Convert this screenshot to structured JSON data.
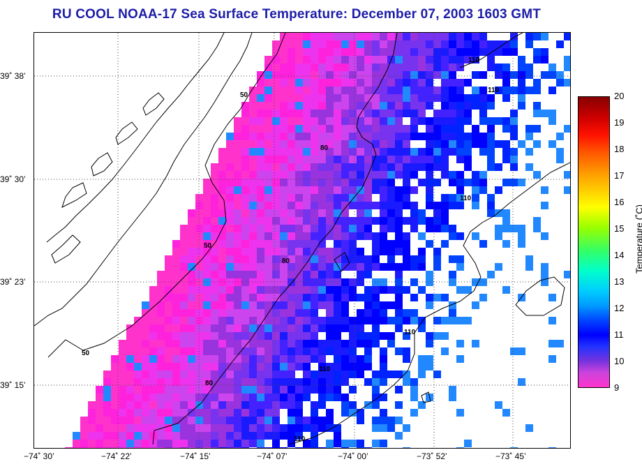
{
  "title": "RU COOL  NOAA-17  Sea Surface Temperature:  December 07, 2003 1603 GMT",
  "map": {
    "lat_ticks": [
      "39˚ 38’",
      "39˚ 30’",
      "39˚ 23’",
      "39˚ 15’"
    ],
    "lon_ticks": [
      "−74˚ 30’",
      "−74˚ 22’",
      "−74˚ 15’",
      "−74˚ 07’",
      "−74˚ 00’",
      "−73˚ 52’",
      "−73˚ 45’"
    ],
    "contour_labels": [
      "50",
      "50",
      "50",
      "80",
      "80",
      "80",
      "110",
      "110",
      "110",
      "110",
      "110",
      "110"
    ],
    "grid": true
  },
  "colorbar": {
    "label": "Temperature (˚C)",
    "ticks": [
      "20",
      "19",
      "18",
      "17",
      "16",
      "15",
      "14",
      "13",
      "12",
      "11",
      "10",
      "9"
    ],
    "min": 9,
    "max": 20
  },
  "colors": {
    "title": "#1c1ca8",
    "sst_cold": "#ff33cc",
    "sst_mid": "#0000ff",
    "sst_warm": "#880000"
  }
}
